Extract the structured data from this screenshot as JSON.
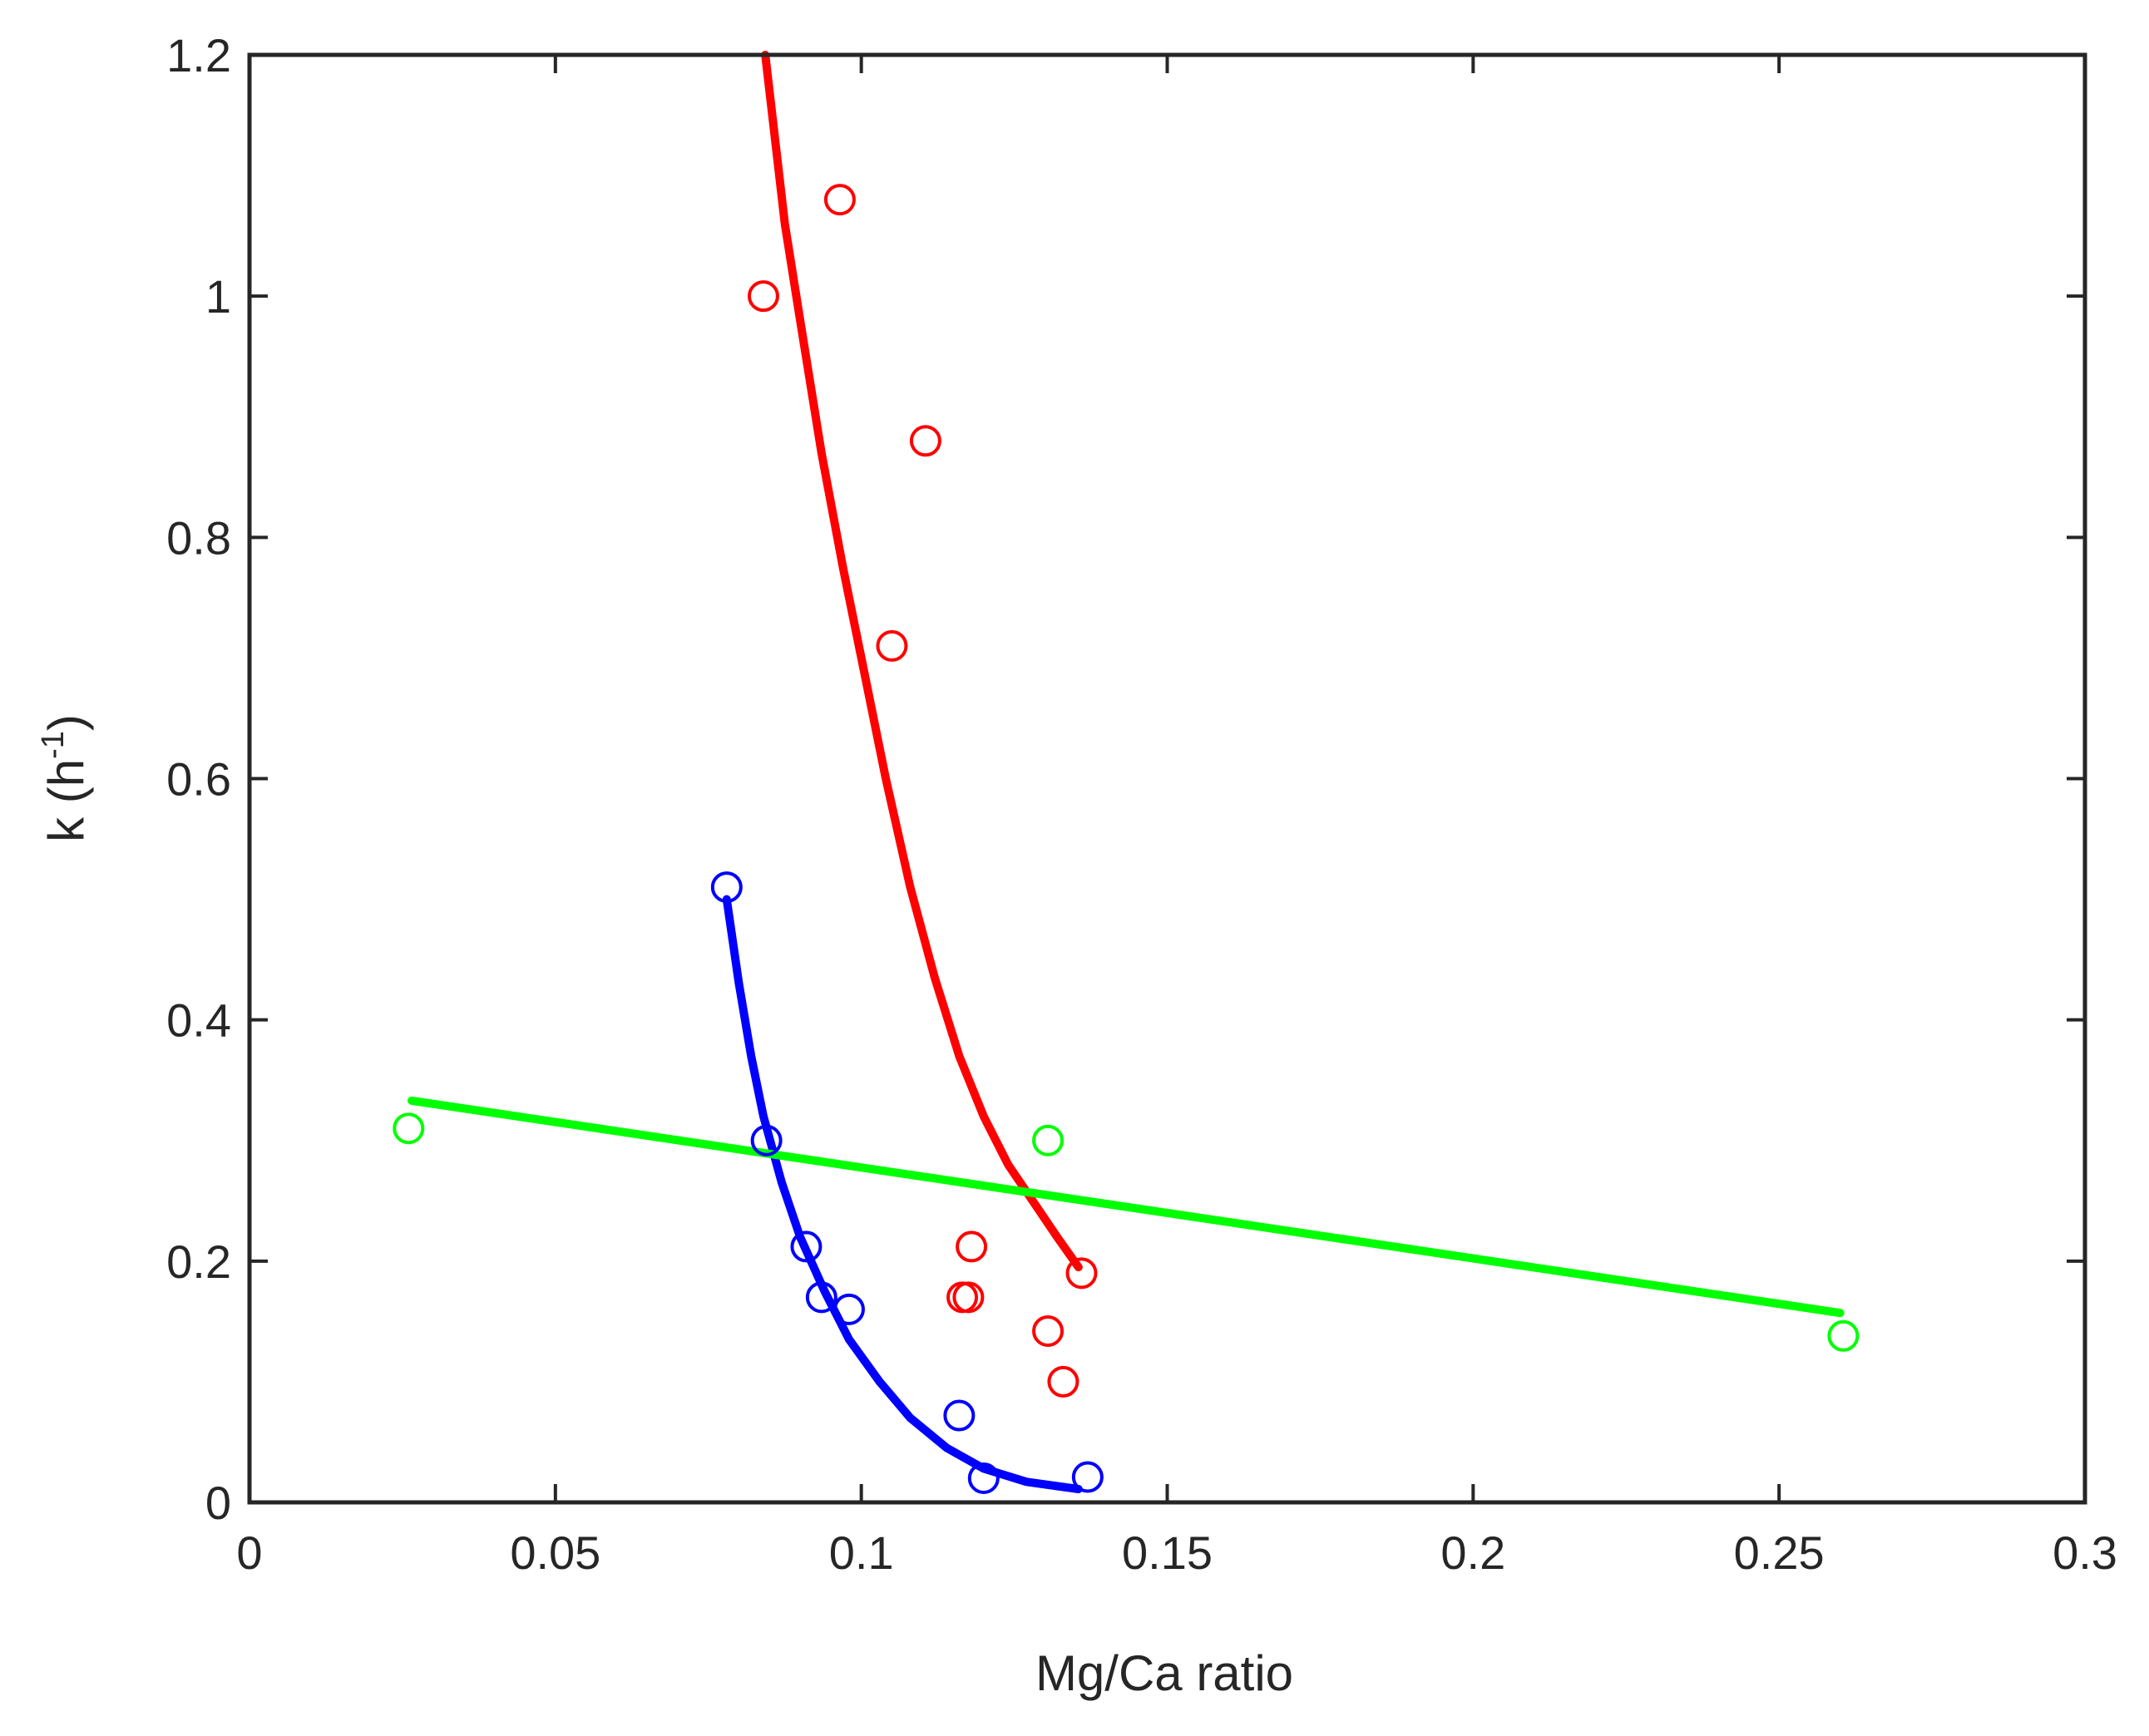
{
  "chart_data": {
    "type": "scatter",
    "title": "",
    "xlabel": "Mg/Ca ratio",
    "ylabel_main": "k (h",
    "ylabel_sup": "-1",
    "ylabel_close": ")",
    "xlim": [
      0,
      0.3
    ],
    "ylim": [
      0,
      1.2
    ],
    "xticks": [
      0,
      0.05,
      0.1,
      0.15,
      0.2,
      0.25,
      0.3
    ],
    "xtick_labels": [
      "0",
      "0.05",
      "0.1",
      "0.15",
      "0.2",
      "0.25",
      "0.3"
    ],
    "yticks": [
      0,
      0.2,
      0.4,
      0.6,
      0.8,
      1.0,
      1.2
    ],
    "ytick_labels": [
      "0",
      "0.2",
      "0.4",
      "0.6",
      "0.8",
      "1",
      "1.2"
    ],
    "grid": false,
    "series": [
      {
        "name": "red",
        "color": "#ff0000",
        "points": [
          {
            "x": 0.084,
            "y": 1.0
          },
          {
            "x": 0.0965,
            "y": 1.08
          },
          {
            "x": 0.1105,
            "y": 0.88
          },
          {
            "x": 0.105,
            "y": 0.71
          },
          {
            "x": 0.1165,
            "y": 0.17
          },
          {
            "x": 0.1175,
            "y": 0.17
          },
          {
            "x": 0.118,
            "y": 0.212
          },
          {
            "x": 0.1305,
            "y": 0.142
          },
          {
            "x": 0.133,
            "y": 0.1
          },
          {
            "x": 0.136,
            "y": 0.19
          }
        ],
        "fit": [
          {
            "x": 0.0843,
            "y": 1.2
          },
          {
            "x": 0.0875,
            "y": 1.06
          },
          {
            "x": 0.09,
            "y": 0.98
          },
          {
            "x": 0.0935,
            "y": 0.87
          },
          {
            "x": 0.097,
            "y": 0.775
          },
          {
            "x": 0.1,
            "y": 0.7
          },
          {
            "x": 0.104,
            "y": 0.6
          },
          {
            "x": 0.108,
            "y": 0.51
          },
          {
            "x": 0.112,
            "y": 0.435
          },
          {
            "x": 0.116,
            "y": 0.37
          },
          {
            "x": 0.12,
            "y": 0.32
          },
          {
            "x": 0.124,
            "y": 0.28
          },
          {
            "x": 0.128,
            "y": 0.25
          },
          {
            "x": 0.132,
            "y": 0.22
          },
          {
            "x": 0.1355,
            "y": 0.195
          }
        ]
      },
      {
        "name": "blue",
        "color": "#0000ff",
        "points": [
          {
            "x": 0.078,
            "y": 0.51
          },
          {
            "x": 0.0845,
            "y": 0.3
          },
          {
            "x": 0.091,
            "y": 0.212
          },
          {
            "x": 0.0935,
            "y": 0.17
          },
          {
            "x": 0.098,
            "y": 0.16
          },
          {
            "x": 0.116,
            "y": 0.072
          },
          {
            "x": 0.12,
            "y": 0.02
          },
          {
            "x": 0.137,
            "y": 0.021
          }
        ],
        "fit": [
          {
            "x": 0.078,
            "y": 0.5
          },
          {
            "x": 0.08,
            "y": 0.43
          },
          {
            "x": 0.082,
            "y": 0.37
          },
          {
            "x": 0.084,
            "y": 0.32
          },
          {
            "x": 0.087,
            "y": 0.265
          },
          {
            "x": 0.09,
            "y": 0.22
          },
          {
            "x": 0.094,
            "y": 0.175
          },
          {
            "x": 0.098,
            "y": 0.135
          },
          {
            "x": 0.103,
            "y": 0.1
          },
          {
            "x": 0.108,
            "y": 0.07
          },
          {
            "x": 0.114,
            "y": 0.045
          },
          {
            "x": 0.12,
            "y": 0.028
          },
          {
            "x": 0.127,
            "y": 0.017
          },
          {
            "x": 0.1355,
            "y": 0.011
          }
        ]
      },
      {
        "name": "green",
        "color": "#00ff00",
        "points": [
          {
            "x": 0.026,
            "y": 0.31
          },
          {
            "x": 0.1305,
            "y": 0.3
          },
          {
            "x": 0.2605,
            "y": 0.138
          }
        ],
        "fit": [
          {
            "x": 0.0265,
            "y": 0.333
          },
          {
            "x": 0.26,
            "y": 0.157
          }
        ]
      }
    ]
  }
}
